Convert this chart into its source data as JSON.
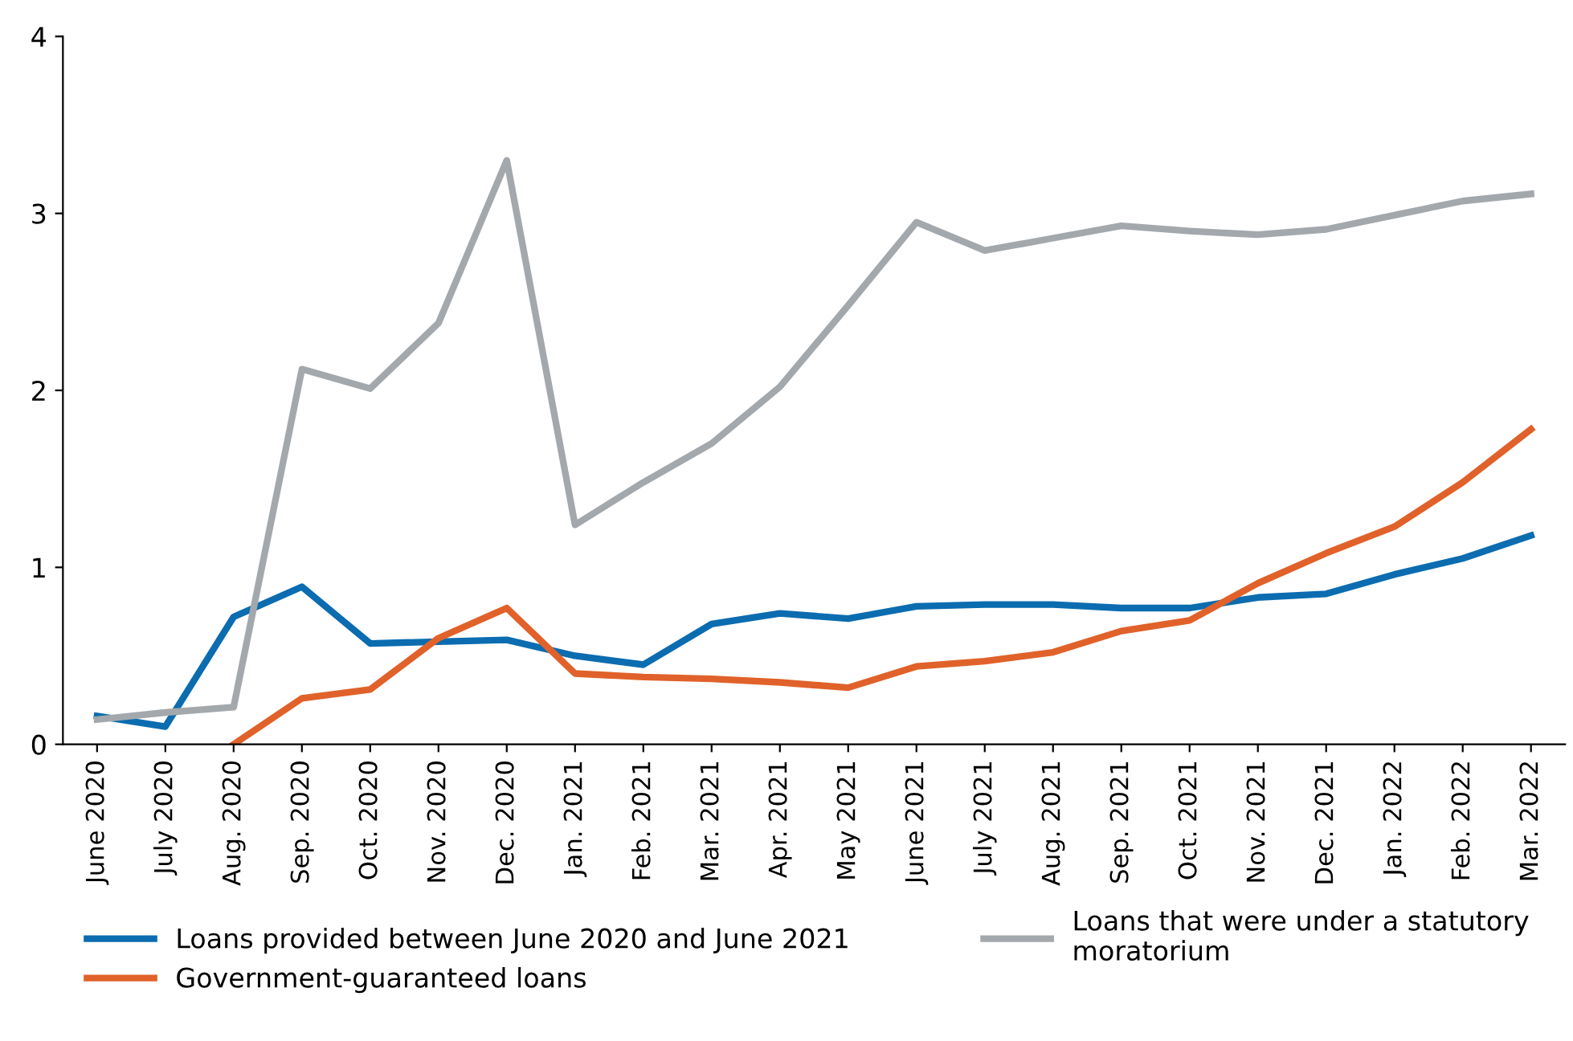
{
  "chart_data": {
    "type": "line",
    "categories": [
      "June 2020",
      "July 2020",
      "Aug. 2020",
      "Sep. 2020",
      "Oct. 2020",
      "Nov. 2020",
      "Dec. 2020",
      "Jan. 2021",
      "Feb. 2021",
      "Mar. 2021",
      "Apr. 2021",
      "May 2021",
      "June 2021",
      "July 2021",
      "Aug. 2021",
      "Sep. 2021",
      "Oct. 2021",
      "Nov. 2021",
      "Dec. 2021",
      "Jan. 2022",
      "Feb. 2022",
      "Mar. 2022"
    ],
    "series": [
      {
        "name": "Loans provided between June 2020 and June 2021",
        "color": "#0b6cb0",
        "values": [
          0.16,
          0.1,
          0.72,
          0.89,
          0.57,
          0.58,
          0.59,
          0.5,
          0.45,
          0.68,
          0.74,
          0.71,
          0.78,
          0.79,
          0.79,
          0.77,
          0.77,
          0.83,
          0.85,
          0.96,
          1.05,
          1.18
        ]
      },
      {
        "name": "Government-guaranteed loans",
        "color": "#e0622a",
        "values": [
          null,
          null,
          0.0,
          0.26,
          0.31,
          0.6,
          0.77,
          0.4,
          0.38,
          0.37,
          0.35,
          0.32,
          0.44,
          0.47,
          0.52,
          0.64,
          0.7,
          0.91,
          1.08,
          1.23,
          1.48,
          1.78
        ]
      },
      {
        "name": "Loans that were under a statutory\nmoratorium",
        "color": "#a3a8ad",
        "values": [
          0.14,
          0.18,
          0.21,
          2.12,
          2.01,
          2.38,
          3.3,
          1.24,
          1.48,
          1.7,
          2.02,
          2.48,
          2.95,
          2.79,
          2.86,
          2.93,
          2.9,
          2.88,
          2.91,
          2.99,
          3.07,
          3.11
        ]
      }
    ],
    "ylim": [
      0,
      4
    ],
    "yticks": [
      0,
      1,
      2,
      3,
      4
    ],
    "grid": false,
    "legend": "bottom",
    "marker": "none",
    "line_style": "solid"
  }
}
